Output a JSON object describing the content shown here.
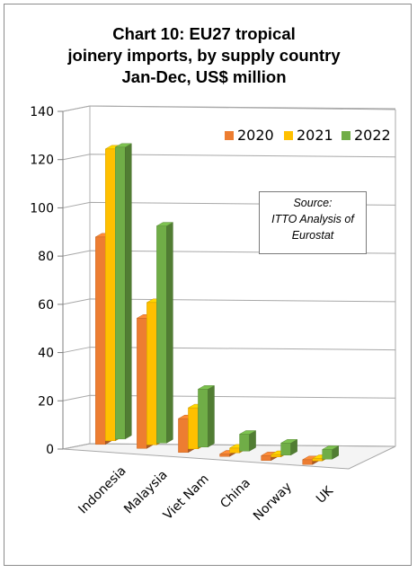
{
  "chart_data": {
    "type": "bar",
    "title_lines": [
      "Chart 10: EU27 tropical",
      "joinery imports, by supply country",
      "Jan-Dec, US$ million"
    ],
    "categories": [
      "Indonesia",
      "Malaysia",
      "Viet Nam",
      "China",
      "Norway",
      "UK"
    ],
    "series": [
      {
        "name": "2020",
        "values": [
          86,
          54,
          14,
          1,
          2,
          2
        ],
        "color": "#ed7d31"
      },
      {
        "name": "2021",
        "values": [
          121,
          59,
          17,
          2,
          1,
          1
        ],
        "color": "#ffc000"
      },
      {
        "name": "2022",
        "values": [
          121,
          90,
          24,
          7,
          5,
          4
        ],
        "color": "#70ad47"
      }
    ],
    "ylim": [
      0,
      140
    ],
    "yticks": [
      0,
      20,
      40,
      60,
      80,
      100,
      120,
      140
    ],
    "grid": true,
    "legend_position": "top-right",
    "annotation_lines": [
      "Source:",
      "ITTO Analysis of",
      "Eurostat"
    ]
  }
}
